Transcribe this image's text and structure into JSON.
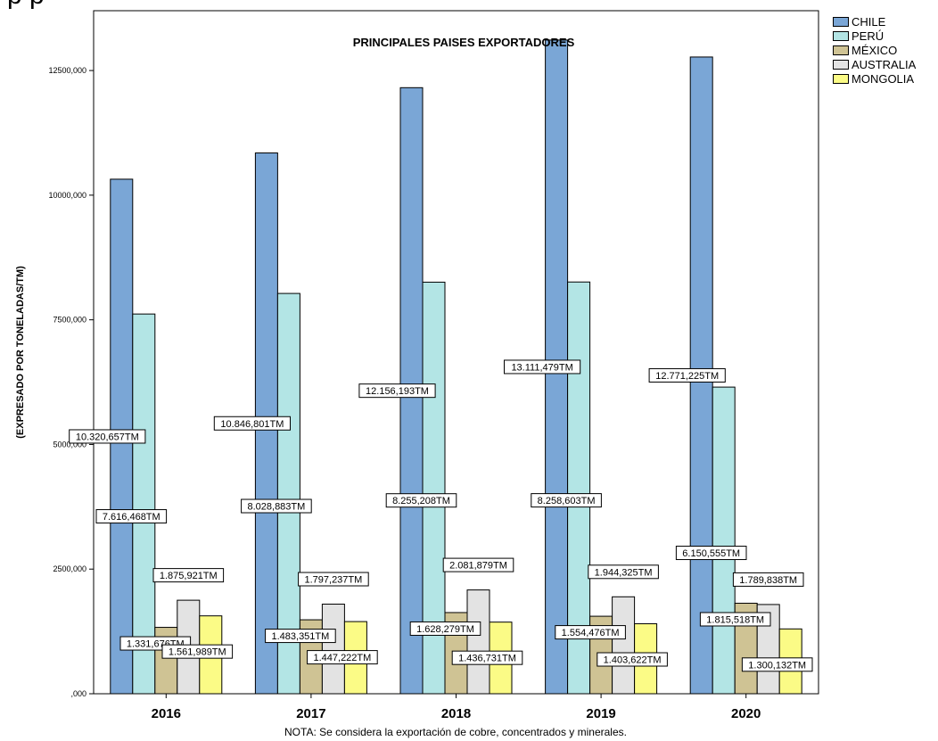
{
  "chart_data": {
    "type": "bar",
    "title": "PRINCIPALES PAISES EXPORTADORES",
    "ylabel": "(EXPRESADO POR TONELADAS/TM)",
    "xlabel": "",
    "note": "NOTA: Se considera la exportación de cobre, concentrados y minerales.",
    "categories": [
      "2016",
      "2017",
      "2018",
      "2019",
      "2020"
    ],
    "ylim": [
      0,
      13700
    ],
    "yticks": [
      0,
      2500,
      5000,
      7500,
      10000,
      12500
    ],
    "ytick_labels": [
      ",000",
      "2500,000",
      "5000,000",
      "7500,000",
      "10000,000",
      "12500,000"
    ],
    "grid": false,
    "legend_position": "right",
    "series": [
      {
        "name": "CHILE",
        "color": "#7aa6d6",
        "values": [
          10320.657,
          10846.801,
          12156.193,
          13111.479,
          12771.225
        ],
        "labels": [
          "10.320,657TM",
          "10.846,801TM",
          "12.156,193TM",
          "13.111,479TM",
          "12.771,225TM"
        ]
      },
      {
        "name": "PERÚ",
        "color": "#b3e5e5",
        "values": [
          7616.468,
          8028.883,
          8255.208,
          8258.603,
          6150.555
        ],
        "labels": [
          "7.616,468TM",
          "8.028,883TM",
          "8.255,208TM",
          "8.258,603TM",
          "6.150,555TM"
        ]
      },
      {
        "name": "MÉXICO",
        "color": "#cfc394",
        "values": [
          1331.676,
          1483.351,
          1628.279,
          1554.476,
          1815.518
        ],
        "labels": [
          "1.331,676TM",
          "1.483,351TM",
          "1.628,279TM",
          "1.554,476TM",
          "1.815,518TM"
        ]
      },
      {
        "name": "AUSTRALIA",
        "color": "#e3e3e3",
        "values": [
          1875.921,
          1797.237,
          2081.879,
          1944.325,
          1789.838
        ],
        "labels": [
          "1.875,921TM",
          "1.797,237TM",
          "2.081,879TM",
          "1.944,325TM",
          "1.789,838TM"
        ]
      },
      {
        "name": "MONGOLIA",
        "color": "#fbfb86",
        "values": [
          1561.989,
          1447.222,
          1436.731,
          1403.622,
          1300.132
        ],
        "labels": [
          "1.561,989TM",
          "1.447,222TM",
          "1.436,731TM",
          "1.403,622TM",
          "1.300,132TM"
        ]
      }
    ]
  }
}
